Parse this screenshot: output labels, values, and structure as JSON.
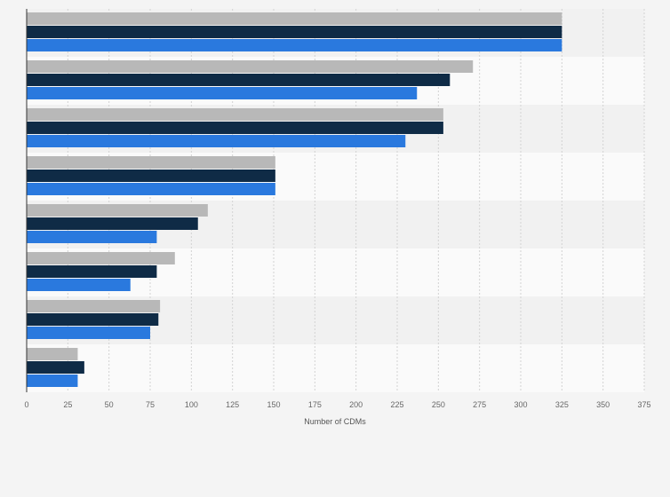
{
  "chart_data": {
    "type": "bar",
    "orientation": "horizontal",
    "xlabel": "Number of CDMs",
    "ylabel": "",
    "xlim": [
      0,
      375
    ],
    "xticks": [
      0,
      25,
      50,
      75,
      100,
      125,
      150,
      175,
      200,
      225,
      250,
      275,
      300,
      325,
      350,
      375
    ],
    "grid": true,
    "legend": "none",
    "category_count": 8,
    "series": [
      {
        "color": "#b8b8b8",
        "values": [
          325,
          271,
          253,
          151,
          110,
          90,
          81,
          31
        ]
      },
      {
        "color": "#0f2b46",
        "values": [
          325,
          257,
          253,
          151,
          104,
          79,
          80,
          35
        ]
      },
      {
        "color": "#2a79de",
        "values": [
          325,
          237,
          230,
          151,
          79,
          63,
          75,
          31
        ]
      }
    ]
  }
}
